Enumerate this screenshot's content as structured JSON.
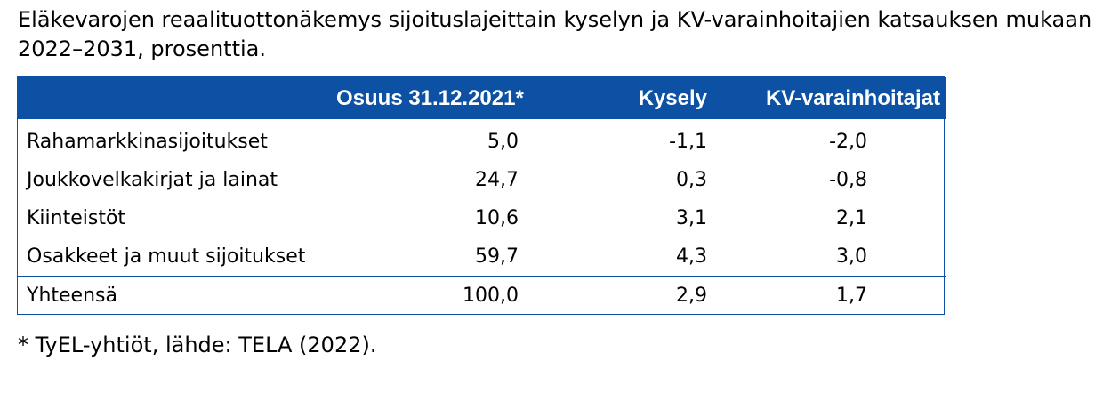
{
  "title": "Eläkevarojen reaalituottonäkemys sijoituslajeittain kyselyn ja KV-varainhoitajien katsauksen mukaan 2022–2031, prosenttia.",
  "table": {
    "headers": [
      "",
      "Osuus 31.12.2021*",
      "Kysely",
      "KV-varainhoitajat"
    ],
    "rows": [
      {
        "name": "Rahamarkkinasijoitukset",
        "share": "5,0",
        "survey": "-1,1",
        "kv": "-2,0"
      },
      {
        "name": "Joukkovelkakirjat ja lainat",
        "share": "24,7",
        "survey": "0,3",
        "kv": "-0,8"
      },
      {
        "name": "Kiinteistöt",
        "share": "10,6",
        "survey": "3,1",
        "kv": "2,1"
      },
      {
        "name": "Osakkeet ja muut sijoitukset",
        "share": "59,7",
        "survey": "4,3",
        "kv": "3,0"
      }
    ],
    "total": {
      "name": "Yhteensä",
      "share": "100,0",
      "survey": "2,9",
      "kv": "1,7"
    }
  },
  "footnote": "* TyEL-yhtiöt, lähde: TELA (2022).",
  "colors": {
    "header_bg": "#0c51a3",
    "header_text": "#ffffff",
    "border": "#0c51a3"
  }
}
